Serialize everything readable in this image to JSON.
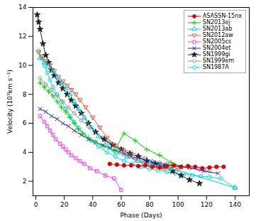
{
  "chart_data": {
    "type": "line",
    "xlabel": "Phase (Days)",
    "ylabel": "Velocity (10³km s⁻¹)",
    "xlim": [
      -2,
      150
    ],
    "ylim": [
      1,
      14
    ],
    "xticks": [
      0,
      20,
      40,
      60,
      80,
      100,
      120,
      140
    ],
    "yticks": [
      2,
      4,
      6,
      8,
      10,
      12,
      14
    ],
    "grid": false,
    "legend": "upper right",
    "series": [
      {
        "name": "SN1987A",
        "color": "#00dddd",
        "marker": "circle",
        "x": [
          2,
          4,
          6,
          8,
          10,
          12,
          15,
          18,
          21,
          24,
          27,
          30,
          34,
          39,
          44,
          50,
          56,
          62,
          68,
          74,
          80,
          86,
          92,
          98,
          104,
          110,
          116,
          122,
          130,
          140
        ],
        "values": [
          11.0,
          10.5,
          10.0,
          9.5,
          9.0,
          8.5,
          8.0,
          7.5,
          7.0,
          6.5,
          6.1,
          5.7,
          5.2,
          4.8,
          4.4,
          4.0,
          3.7,
          3.4,
          3.2,
          3.0,
          2.85,
          2.75,
          2.65,
          2.55,
          2.48,
          2.42,
          2.35,
          2.3,
          2.2,
          1.55
        ]
      },
      {
        "name": "SN1999em",
        "color": "#888888",
        "marker": "diamond",
        "x": [
          3,
          7,
          11,
          15,
          19,
          23,
          27,
          32,
          37,
          42,
          47,
          52,
          57,
          62,
          67,
          72,
          77,
          82,
          87,
          92,
          97,
          102,
          108,
          115,
          122
        ],
        "values": [
          9.1,
          8.7,
          8.3,
          7.9,
          7.5,
          7.1,
          6.7,
          6.2,
          5.8,
          5.4,
          5.0,
          4.7,
          4.4,
          4.2,
          4.0,
          3.8,
          3.6,
          3.4,
          3.3,
          3.2,
          3.1,
          3.0,
          2.9,
          2.8,
          2.7
        ]
      },
      {
        "name": "SN1999gi",
        "color": "#222222",
        "marker": "star",
        "x": [
          1,
          2,
          3,
          5,
          7,
          9,
          11,
          13,
          16,
          19,
          22,
          25,
          28,
          32,
          37,
          42,
          48,
          54,
          60,
          66,
          72,
          78,
          84,
          90,
          96,
          102,
          108,
          115
        ],
        "values": [
          13.5,
          13.0,
          12.5,
          11.5,
          10.7,
          10.2,
          9.7,
          9.3,
          8.8,
          8.4,
          8.0,
          7.6,
          7.2,
          6.7,
          6.0,
          5.4,
          4.9,
          4.5,
          4.2,
          3.9,
          3.7,
          3.4,
          3.2,
          3.0,
          2.7,
          2.4,
          2.1,
          1.85
        ]
      },
      {
        "name": "SN2004et",
        "color": "#2222cc",
        "marker": "times",
        "x": [
          3,
          7,
          11,
          15,
          19,
          23,
          27,
          32,
          37,
          42,
          47,
          52,
          57,
          62,
          67,
          72,
          77,
          82,
          87,
          92,
          97,
          102,
          108,
          118,
          128
        ],
        "values": [
          7.0,
          6.8,
          6.5,
          6.3,
          6.0,
          5.8,
          5.5,
          5.2,
          4.9,
          4.7,
          4.5,
          4.3,
          4.1,
          3.9,
          3.7,
          3.6,
          3.45,
          3.3,
          3.2,
          3.1,
          3.05,
          3.0,
          2.95,
          2.7,
          2.55
        ]
      },
      {
        "name": "SN2005cs",
        "color": "#ee44ee",
        "marker": "square",
        "x": [
          3,
          6,
          8,
          10,
          12,
          14,
          17,
          19,
          21,
          23,
          25,
          28,
          31,
          34,
          38,
          43,
          49,
          55,
          60
        ],
        "values": [
          6.5,
          6.1,
          5.8,
          5.5,
          5.2,
          4.9,
          4.6,
          4.4,
          4.2,
          4.0,
          3.8,
          3.6,
          3.4,
          3.2,
          2.9,
          2.7,
          2.4,
          2.2,
          1.4
        ]
      },
      {
        "name": "SN2012aw",
        "color": "#ee5533",
        "marker": "triangle-down",
        "x": [
          2,
          4,
          7,
          10,
          13,
          16,
          19,
          22,
          25,
          28,
          31,
          35,
          40,
          45,
          50,
          55,
          60,
          65,
          70,
          75,
          80,
          85,
          90,
          95,
          100
        ],
        "values": [
          10.9,
          10.6,
          10.3,
          10.0,
          9.6,
          9.2,
          8.9,
          8.6,
          8.3,
          8.0,
          7.6,
          7.1,
          6.4,
          5.7,
          5.0,
          4.5,
          4.1,
          3.8,
          3.5,
          3.3,
          3.1,
          3.0,
          2.9,
          2.85,
          2.8
        ]
      },
      {
        "name": "SN2013ab",
        "color": "#00ccee",
        "marker": "triangle",
        "x": [
          3,
          6,
          9,
          12,
          15,
          18,
          21,
          24,
          27,
          30,
          34,
          39,
          44,
          50,
          57,
          64,
          72,
          80,
          88,
          95,
          140
        ],
        "values": [
          10.5,
          10.2,
          9.9,
          9.6,
          9.2,
          8.8,
          8.4,
          8.0,
          7.5,
          7.0,
          6.4,
          5.7,
          5.1,
          4.5,
          4.0,
          3.7,
          3.4,
          3.2,
          3.05,
          2.9,
          1.55
        ]
      },
      {
        "name": "SN2013ej",
        "color": "#00cc00",
        "marker": "plus",
        "x": [
          3,
          6,
          9,
          12,
          15,
          18,
          21,
          24,
          27,
          30,
          33,
          37,
          42,
          48,
          55,
          62,
          70,
          78,
          87,
          95,
          103
        ],
        "values": [
          8.8,
          8.5,
          8.2,
          7.9,
          7.5,
          7.1,
          6.8,
          6.4,
          6.0,
          5.6,
          5.3,
          5.0,
          4.7,
          4.4,
          4.1,
          5.3,
          4.8,
          4.2,
          3.8,
          3.3,
          3.0
        ]
      },
      {
        "name": "ASASSN-15nx",
        "color": "#dd0000",
        "marker": "dot",
        "x": [
          52,
          57,
          62,
          67,
          72,
          77,
          82,
          87,
          92,
          97,
          102,
          107,
          112,
          117,
          122,
          127,
          132
        ],
        "values": [
          3.2,
          3.15,
          3.1,
          3.1,
          3.05,
          3.1,
          3.0,
          2.95,
          3.05,
          3.1,
          3.0,
          3.05,
          3.0,
          2.9,
          2.95,
          3.0,
          3.0
        ]
      }
    ]
  }
}
